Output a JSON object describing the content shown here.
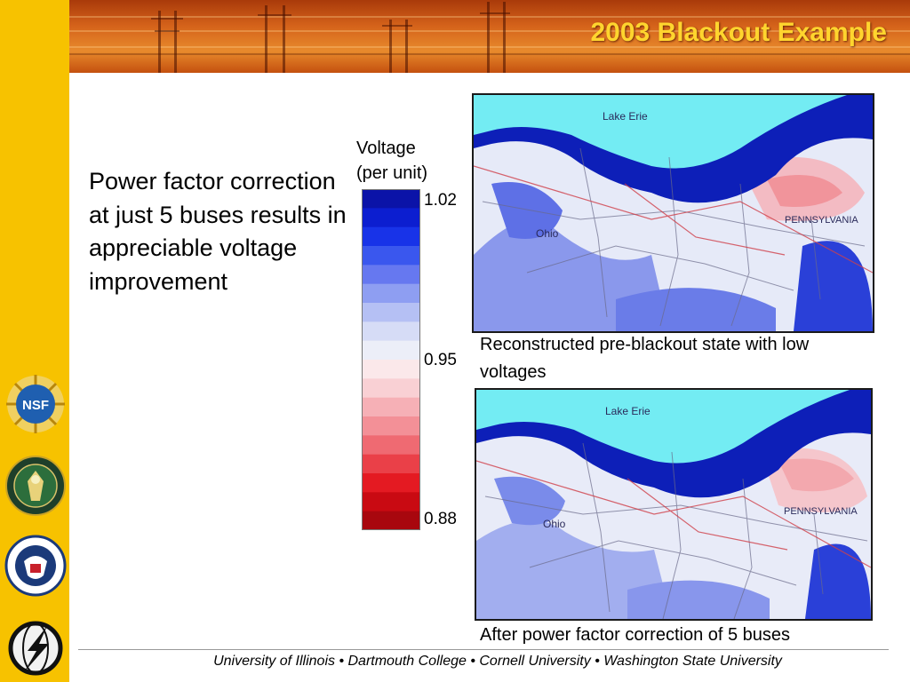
{
  "slide": {
    "title": "2003 Blackout Example",
    "bullet": "Power factor correction at just 5 buses results in appreciable voltage improvement"
  },
  "legend": {
    "title_line1": "Voltage",
    "title_line2": "(per unit)",
    "ticks": [
      "1.02",
      "0.95",
      "0.88"
    ],
    "colors": [
      "#0b13a8",
      "#0c1ed0",
      "#1833e8",
      "#3a57ee",
      "#6678f0",
      "#8e9ef2",
      "#b5c0f4",
      "#d6dcf6",
      "#eceef8",
      "#fbe8ea",
      "#f9d0d4",
      "#f6b0b6",
      "#f39097",
      "#ef6a72",
      "#ea4048",
      "#e41a22",
      "#c90a12",
      "#a8070e"
    ]
  },
  "maps": [
    {
      "label_lake": "Lake Erie",
      "label_state": "Ohio",
      "label_state2": "PENNSYLVANIA",
      "caption": "Reconstructed pre-blackout state with low voltages"
    },
    {
      "label_lake": "Lake Erie",
      "label_state": "Ohio",
      "label_state2": "PENNSYLVANIA",
      "caption": "After power factor correction of 5 buses"
    }
  ],
  "footer": "University of Illinois  •  Dartmouth College  •  Cornell University  •  Washington State University",
  "logos": {
    "nsf": "NSF",
    "doe_icon": "department-of-energy-seal-icon",
    "dhs_icon": "homeland-security-seal-icon",
    "lightning_icon": "lightning-globe-icon"
  }
}
